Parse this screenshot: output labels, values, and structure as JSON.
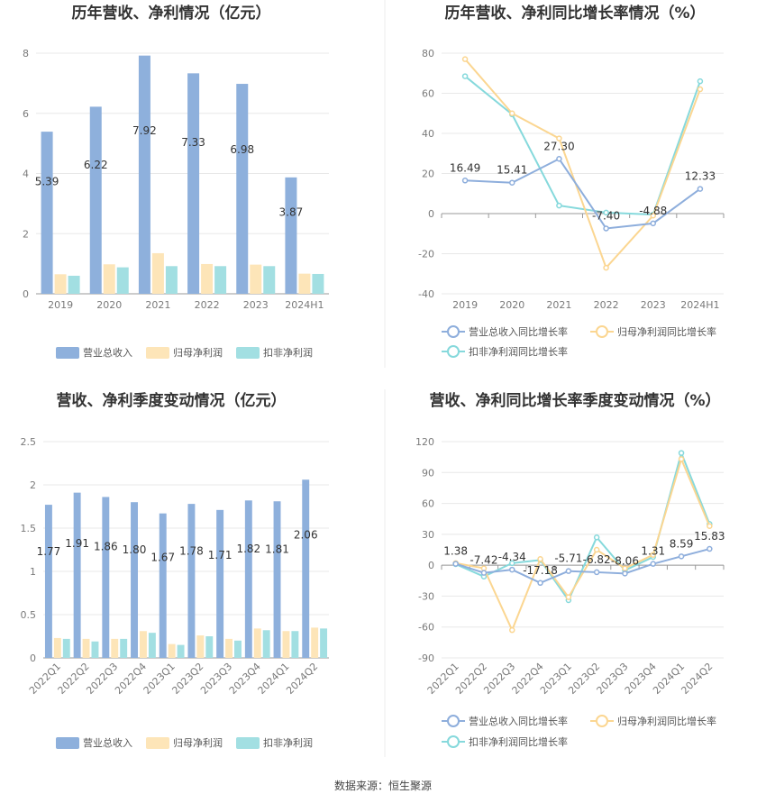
{
  "source": "数据来源：恒生聚源",
  "colors": {
    "revenue": "#8eb0dc",
    "net": "#fde5b8",
    "deducted": "#a2dfe2",
    "revenue_line": "#8eaedc",
    "net_line": "#fbd691",
    "deducted_line": "#86d9dc"
  },
  "chart_data": [
    {
      "type": "bar",
      "title": "历年营收、净利情况（亿元）",
      "categories": [
        "2019",
        "2020",
        "2021",
        "2022",
        "2023",
        "2024H1"
      ],
      "ylim": [
        0,
        8
      ],
      "yticks": [
        0,
        2,
        4,
        6,
        8
      ],
      "series": [
        {
          "name": "营业总收入",
          "values": [
            5.39,
            6.22,
            7.92,
            7.33,
            6.98,
            3.87
          ],
          "labels": [
            "5.39",
            "6.22",
            "7.92",
            "7.33",
            "6.98",
            "3.87"
          ]
        },
        {
          "name": "归母净利润",
          "values": [
            0.65,
            0.98,
            1.35,
            0.99,
            0.97,
            0.67
          ]
        },
        {
          "name": "扣非净利润",
          "values": [
            0.6,
            0.88,
            0.92,
            0.92,
            0.92,
            0.66
          ]
        }
      ]
    },
    {
      "type": "line",
      "title": "历年营收、净利同比增长率情况（%）",
      "categories": [
        "2019",
        "2020",
        "2021",
        "2022",
        "2023",
        "2024H1"
      ],
      "ylim": [
        -40,
        80
      ],
      "yticks": [
        -40,
        -20,
        0,
        20,
        40,
        60,
        80
      ],
      "series": [
        {
          "name": "营业总收入同比增长率",
          "values": [
            16.49,
            15.41,
            27.3,
            -7.4,
            -4.88,
            12.33
          ],
          "labels": [
            "16.49",
            "15.41",
            "27.30",
            "-7.40",
            "-4.88",
            "12.33"
          ]
        },
        {
          "name": "归母净利润同比增长率",
          "values": [
            77,
            50,
            37.5,
            -27,
            -1,
            62
          ]
        },
        {
          "name": "扣非净利润同比增长率",
          "values": [
            68.5,
            49.5,
            4,
            0.5,
            -0.5,
            66
          ]
        }
      ]
    },
    {
      "type": "bar",
      "title": "营收、净利季度变动情况（亿元）",
      "categories": [
        "2022Q1",
        "2022Q2",
        "2022Q3",
        "2022Q4",
        "2023Q1",
        "2023Q2",
        "2023Q3",
        "2023Q4",
        "2024Q1",
        "2024Q2"
      ],
      "ylim": [
        0,
        2.5
      ],
      "yticks": [
        0,
        0.5,
        1,
        1.5,
        2,
        2.5
      ],
      "series": [
        {
          "name": "营业总收入",
          "values": [
            1.77,
            1.91,
            1.86,
            1.8,
            1.67,
            1.78,
            1.71,
            1.82,
            1.81,
            2.06
          ],
          "labels": [
            "1.77",
            "1.91",
            "1.86",
            "1.80",
            "1.67",
            "1.78",
            "1.71",
            "1.82",
            "1.81",
            "2.06"
          ]
        },
        {
          "name": "归母净利润",
          "values": [
            0.23,
            0.22,
            0.22,
            0.31,
            0.16,
            0.26,
            0.22,
            0.34,
            0.31,
            0.35
          ]
        },
        {
          "name": "扣非净利润",
          "values": [
            0.22,
            0.19,
            0.22,
            0.29,
            0.15,
            0.25,
            0.2,
            0.32,
            0.31,
            0.34
          ]
        }
      ]
    },
    {
      "type": "line",
      "title": "营收、净利同比增长率季度变动情况（%）",
      "categories": [
        "2022Q1",
        "2022Q2",
        "2022Q3",
        "2022Q4",
        "2023Q1",
        "2023Q2",
        "2023Q3",
        "2023Q4",
        "2024Q1",
        "2024Q2"
      ],
      "ylim": [
        -90,
        120
      ],
      "yticks": [
        -90,
        -60,
        -30,
        0,
        30,
        60,
        90,
        120
      ],
      "series": [
        {
          "name": "营业总收入同比增长率",
          "values": [
            1.38,
            -7.42,
            -4.34,
            -17.18,
            -5.71,
            -6.82,
            -8.06,
            1.31,
            8.59,
            15.83
          ],
          "labels": [
            "1.38",
            "-7.42",
            "-4.34",
            "-17.18",
            "-5.71",
            "-6.82",
            "-8.06",
            "1.31",
            "8.59",
            "15.83"
          ]
        },
        {
          "name": "归母净利润同比增长率",
          "values": [
            2,
            -3,
            -63,
            6,
            -31,
            15,
            -3,
            10,
            103,
            38
          ]
        },
        {
          "name": "扣非净利润同比增长率",
          "values": [
            1,
            -11,
            2,
            5,
            -34,
            27,
            -5,
            8,
            109,
            40
          ]
        }
      ]
    }
  ]
}
